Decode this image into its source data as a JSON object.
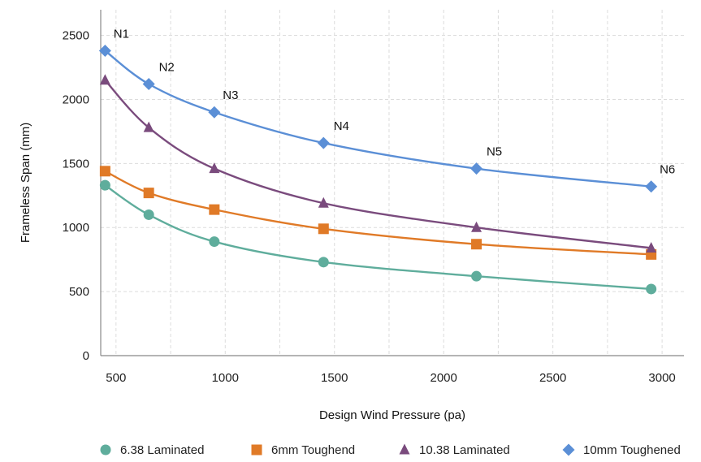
{
  "chart_data": {
    "type": "line",
    "title": "",
    "xlabel": "Design Wind Pressure (pa)",
    "ylabel": "Frameless Span (mm)",
    "xlim": [
      430,
      3100
    ],
    "ylim": [
      0,
      2700
    ],
    "x_ticks": [
      500,
      1000,
      1500,
      2000,
      2500,
      3000
    ],
    "y_ticks": [
      0,
      500,
      1000,
      1500,
      2000,
      2500
    ],
    "grid": true,
    "legend_position": "bottom",
    "x": [
      450,
      650,
      950,
      1450,
      2150,
      2950
    ],
    "point_labels": [
      "N1",
      "N2",
      "N3",
      "N4",
      "N5",
      "N6"
    ],
    "series": [
      {
        "name": "6.38 Laminated",
        "marker": "circle",
        "color": "#5fad9c",
        "values": [
          1330,
          1100,
          890,
          730,
          620,
          520
        ]
      },
      {
        "name": "6mm Toughend",
        "marker": "square",
        "color": "#e07a27",
        "values": [
          1440,
          1270,
          1140,
          990,
          870,
          790
        ]
      },
      {
        "name": "10.38 Laminated",
        "marker": "triangle",
        "color": "#7a4b7d",
        "values": [
          2150,
          1780,
          1460,
          1190,
          1000,
          840
        ]
      },
      {
        "name": "10mm Toughened",
        "marker": "diamond",
        "color": "#5b8fd6",
        "values": [
          2380,
          2120,
          1900,
          1660,
          1460,
          1320
        ]
      }
    ]
  }
}
